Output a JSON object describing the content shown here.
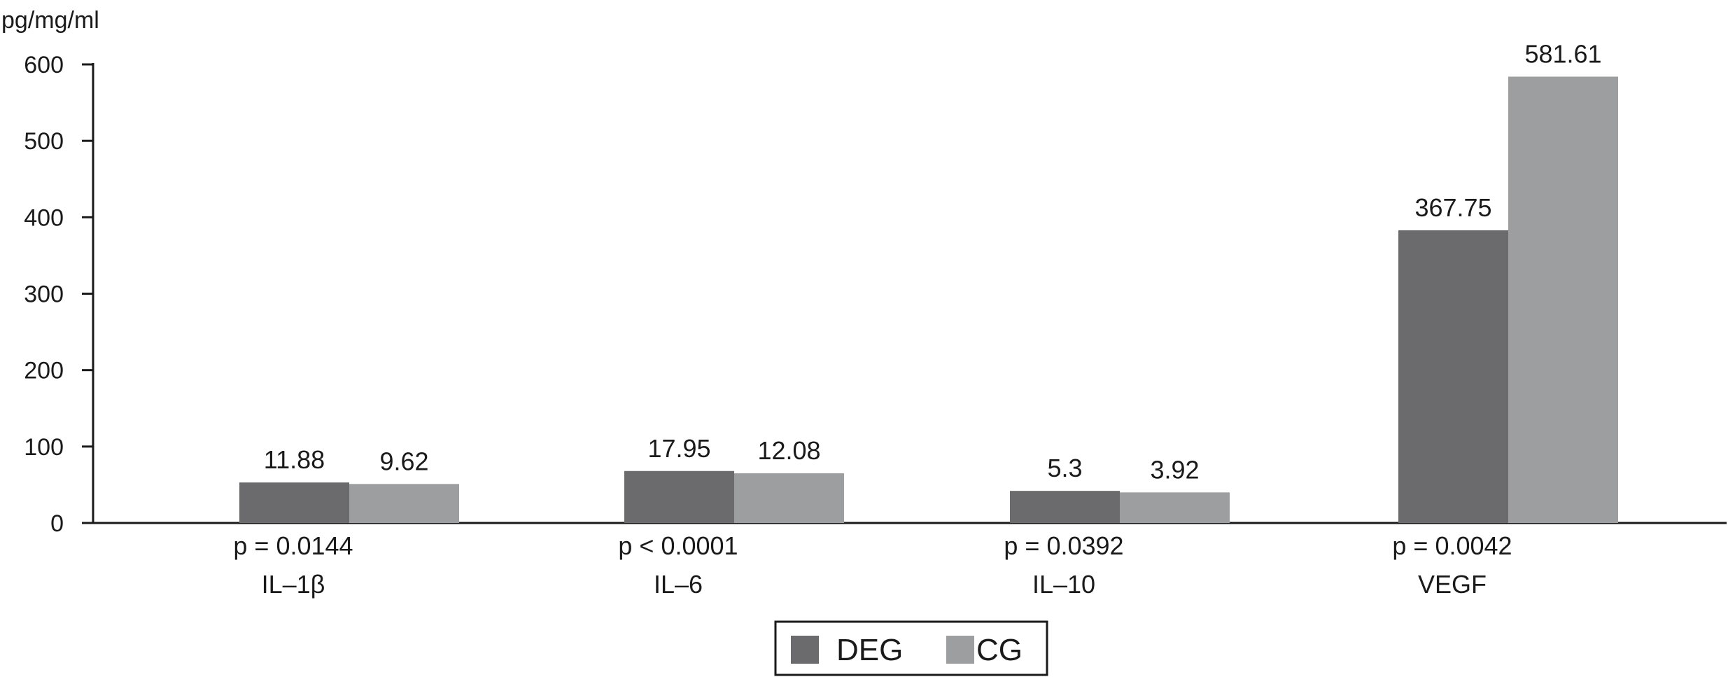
{
  "chart_data": {
    "type": "bar",
    "ylabel": "pg/mg/ml",
    "ylim": [
      0,
      600
    ],
    "yticks": [
      0,
      100,
      200,
      300,
      400,
      500,
      600
    ],
    "categories": [
      "IL–1β",
      "IL–6",
      "IL–10",
      "VEGF"
    ],
    "p_values": [
      "p = 0.0144",
      "p < 0.0001",
      "p = 0.0392",
      "p = 0.0042"
    ],
    "series": [
      {
        "name": "DEG",
        "color": "#6b6b6d",
        "values": [
          53,
          68,
          42,
          383
        ],
        "labels": [
          "11.88",
          "17.95",
          "5.3",
          "367.75"
        ]
      },
      {
        "name": "CG",
        "color": "#9d9ea0",
        "values": [
          51,
          65,
          40,
          584
        ],
        "labels": [
          "9.62",
          "12.08",
          "3.92",
          "581.61"
        ]
      }
    ],
    "legend_position": "bottom-center",
    "grid": false
  }
}
